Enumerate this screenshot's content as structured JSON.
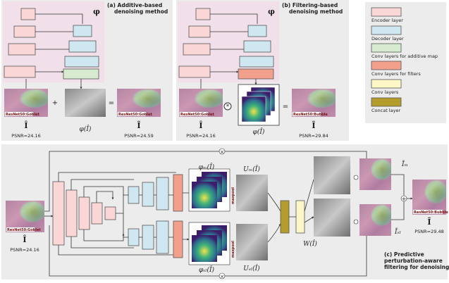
{
  "panel_a": {
    "title": [
      "(a) Additive-based",
      "denoising method"
    ],
    "symbol": "φ",
    "input": {
      "tag": "ResNet50:Goblet",
      "symbol": "Î",
      "psnr": "PSNR=24.16"
    },
    "plus": "+",
    "map": "φ(Î)",
    "equals": "=",
    "output": {
      "tag": "ResNet50:Goblet",
      "symbol": "Ĩ",
      "psnr": "PSNR=24.59"
    }
  },
  "panel_b": {
    "title": [
      "(b) Filtering-based",
      "denoising method"
    ],
    "symbol": "φ",
    "input": {
      "tag": "ResNet50:Goblet",
      "symbol": "Î",
      "psnr": "PSNR=24.16"
    },
    "map": "φ(Î)",
    "equals": "=",
    "output": {
      "tag": "ResNet50:Bubble",
      "symbol": "Ĩ",
      "psnr": "PSNR=29.84"
    }
  },
  "legend": [
    "Encoder layer",
    "Decoder layer",
    "Conv layers for additive map",
    "Conv layers for filters",
    "Conv layers",
    "Concat layer"
  ],
  "panel_c": {
    "input": {
      "tag": "ResNet50:Goblet",
      "symbol": "Î",
      "psnr": "PSNR=24.16"
    },
    "phi_m": "φₘ(Î)",
    "phi_sl": "φₛₗ(Î)",
    "maxpool": "maxpool",
    "u_m": "Uₘ(Î)",
    "u_sl": "Uₛₗ(Î)",
    "w": "W(Î)",
    "i_m": "Ĩₘ",
    "i_sl": "Ĩₛₗ",
    "output": {
      "tag": "ResNet50:Bubble",
      "symbol": "Ĩ",
      "psnr": "PSNR=29.48"
    },
    "title": [
      "(c) Predictive",
      "perturbation-aware",
      "filtering for denoising"
    ]
  }
}
